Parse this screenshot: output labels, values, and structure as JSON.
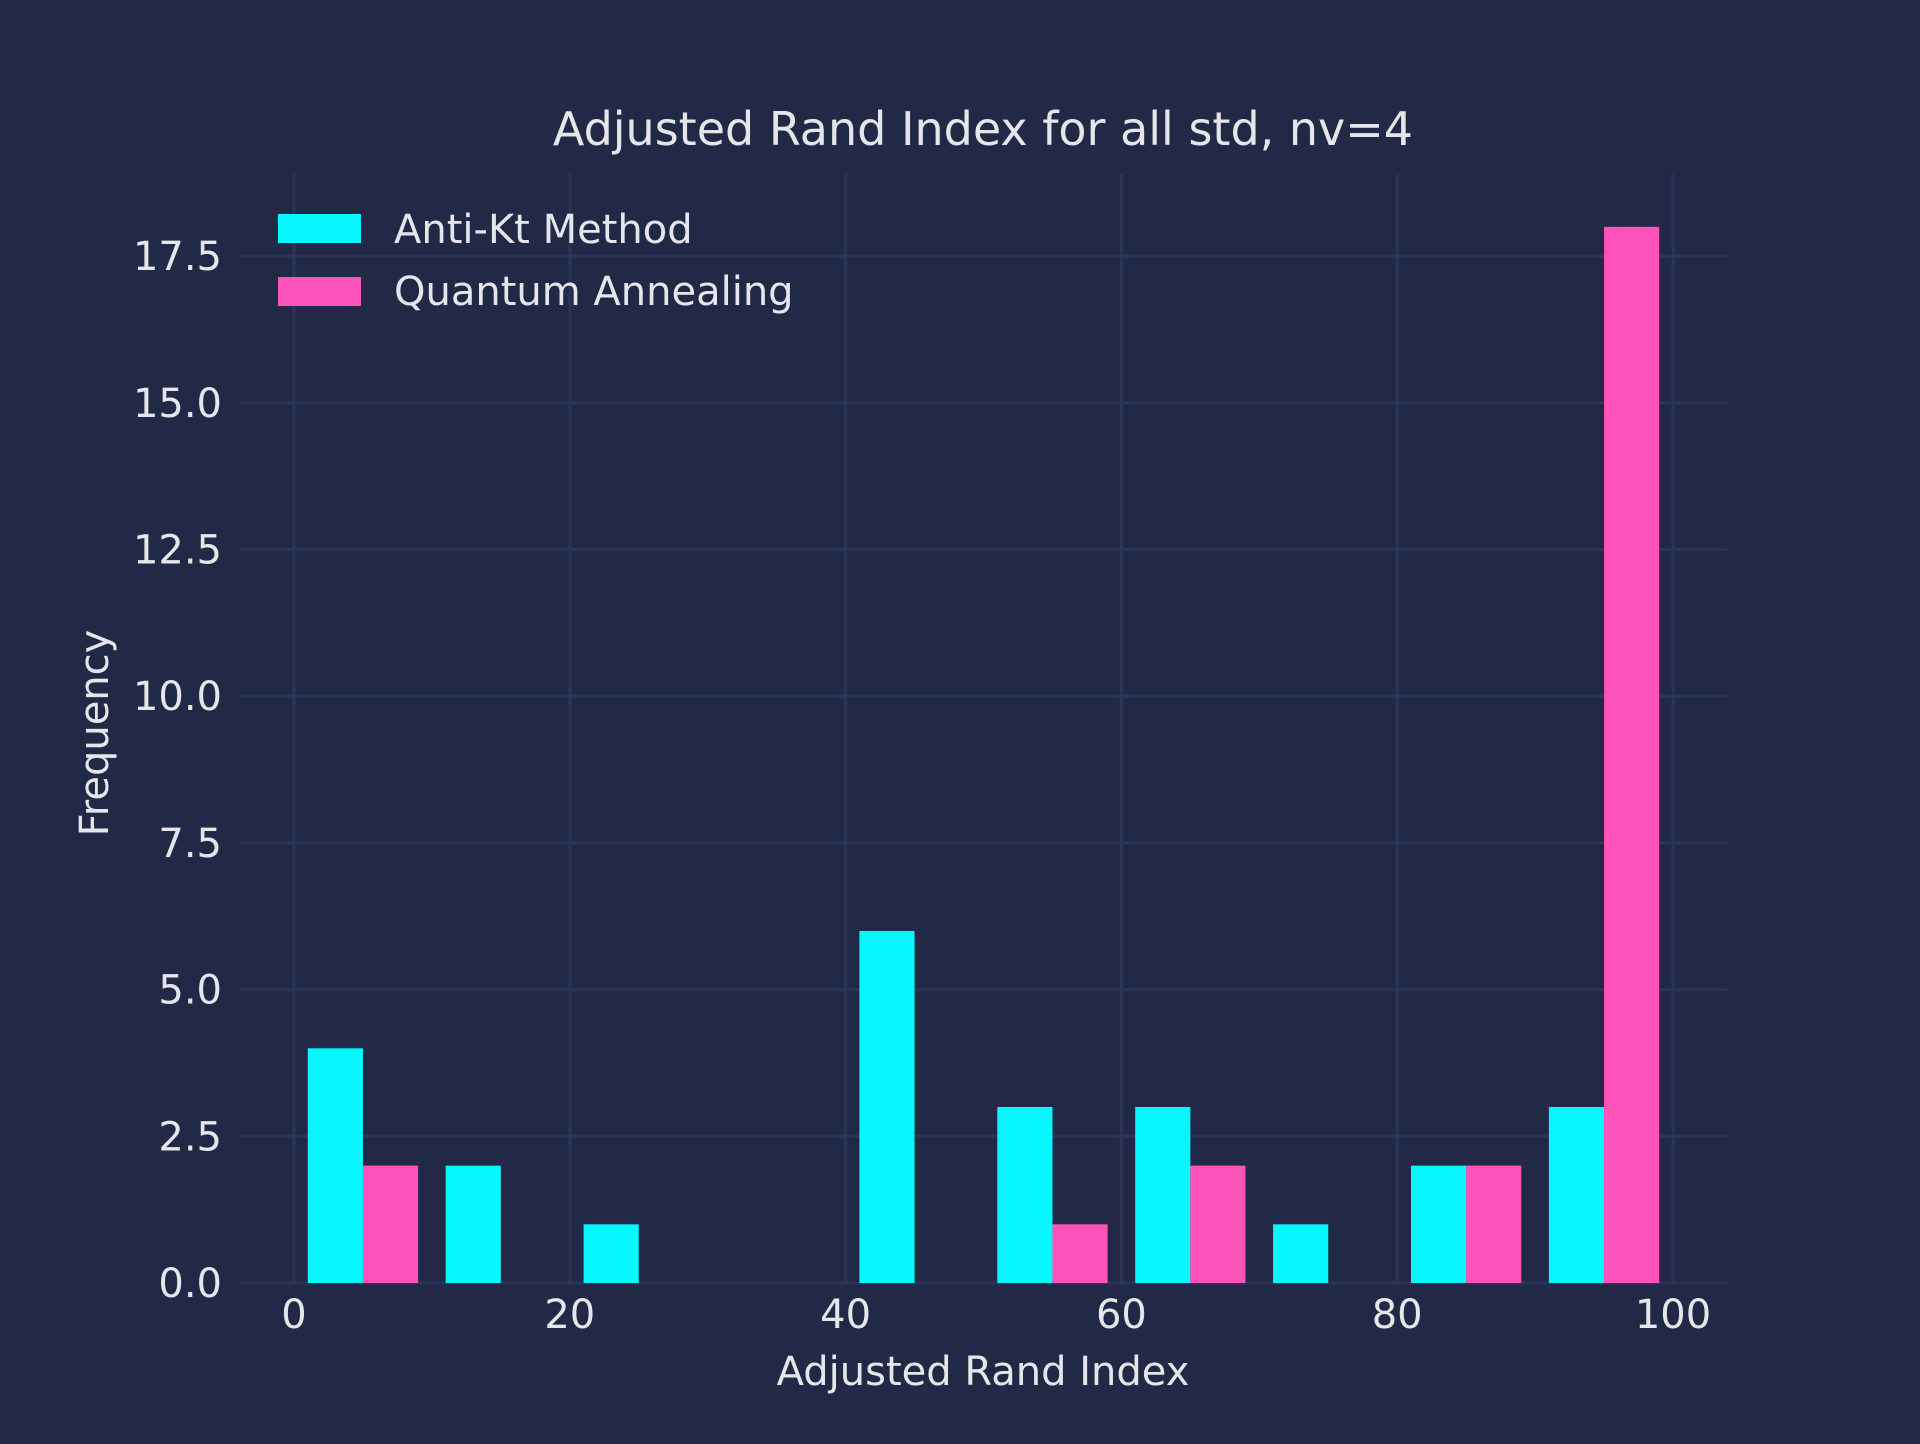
{
  "chart_data": {
    "type": "bar",
    "title": "Adjusted Rand Index for all std, nv=4",
    "xlabel": "Adjusted Rand Index",
    "ylabel": "Frequency",
    "xlim": [
      -4,
      104
    ],
    "ylim": [
      0,
      18.9
    ],
    "xticks": [
      0,
      20,
      40,
      60,
      80,
      100
    ],
    "xtick_labels": [
      "0",
      "20",
      "40",
      "60",
      "80",
      "100"
    ],
    "yticks": [
      0,
      2.5,
      5,
      7.5,
      10,
      12.5,
      15,
      17.5
    ],
    "ytick_labels": [
      "0.0",
      "2.5",
      "5.0",
      "7.5",
      "10.0",
      "12.5",
      "15.0",
      "17.5"
    ],
    "grid": true,
    "legend_position": "top-left",
    "bin_edges": [
      0,
      10,
      20,
      30,
      40,
      50,
      60,
      70,
      80,
      90,
      100
    ],
    "series": [
      {
        "name": "Anti-Kt Method",
        "color": "#08F7FE",
        "values": [
          4,
          2,
          1,
          0,
          6,
          3,
          3,
          1,
          2,
          3
        ]
      },
      {
        "name": "Quantum Annealing",
        "color": "#FE53BB",
        "values": [
          2,
          0,
          0,
          0,
          0,
          1,
          2,
          0,
          2,
          18
        ]
      }
    ]
  },
  "colors": {
    "background": "#212946",
    "grid": "#2A3459",
    "text": "#e6e6ea"
  }
}
